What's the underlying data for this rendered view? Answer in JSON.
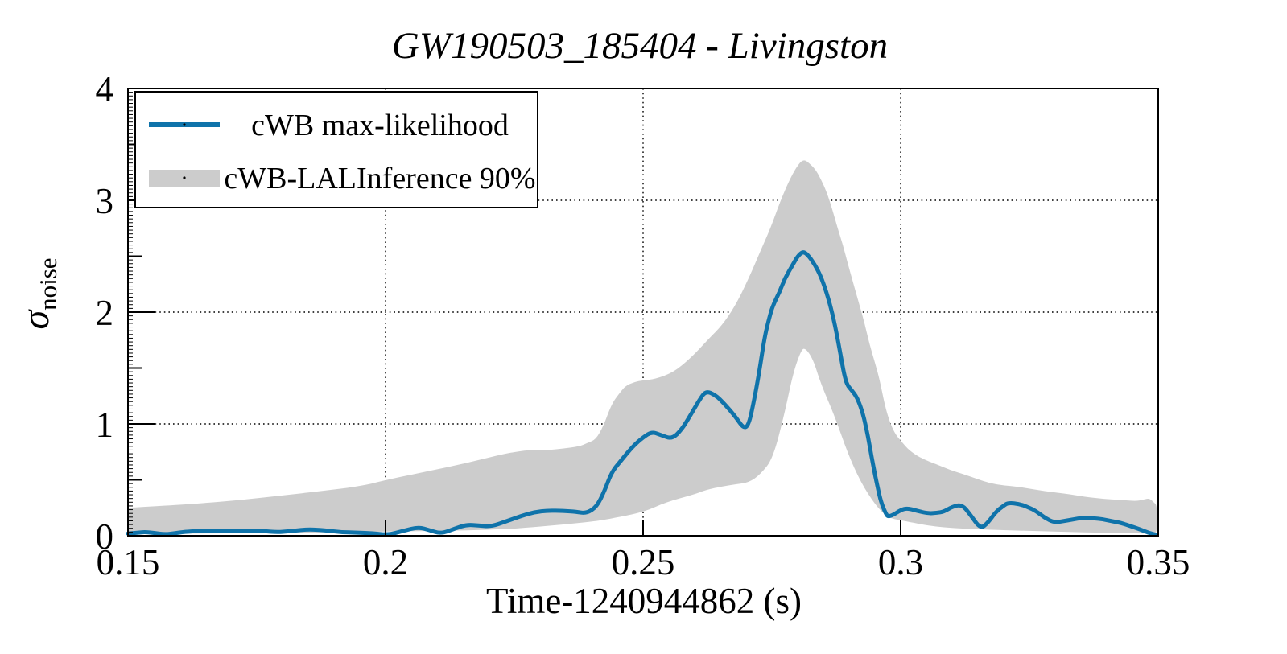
{
  "title": "GW190503_185404 - Livingston",
  "y_axis_label": {
    "symbol": "σ",
    "subscript": "noise"
  },
  "legend": {
    "entries": [
      {
        "label": "cWB max-likelihood",
        "swatch": "line"
      },
      {
        "label": "cWB-LALInference 90%",
        "swatch": "band"
      }
    ]
  },
  "chart_data": {
    "type": "line",
    "title": "GW190503_185404 - Livingston",
    "xlabel": "Time-1240944862 (s)",
    "ylabel": "sigma_noise",
    "xlim": [
      0.15,
      0.35
    ],
    "ylim": [
      0,
      4
    ],
    "x_ticks": [
      0.15,
      0.2,
      0.25,
      0.3,
      0.35
    ],
    "x_tick_labels": [
      "0.15",
      "0.2",
      "0.25",
      "0.3",
      "0.35"
    ],
    "y_ticks": [
      0,
      1,
      2,
      3,
      4
    ],
    "y_tick_labels": [
      "0",
      "1",
      "2",
      "3",
      "4"
    ],
    "x_gridlines": [
      0.2,
      0.25,
      0.3
    ],
    "y_gridlines": [
      1,
      2,
      3
    ],
    "grid_style": "dotted",
    "legend_position": "top-left",
    "colors": {
      "line": "#0f73aa",
      "band": "#cccccc",
      "frame": "#000000"
    },
    "series": [
      {
        "name": "cWB max-likelihood",
        "type": "line",
        "points": [
          [
            0.15,
            0.02
          ],
          [
            0.152,
            0.028
          ],
          [
            0.1533,
            0.034
          ],
          [
            0.155,
            0.025
          ],
          [
            0.1572,
            0.012
          ],
          [
            0.159,
            0.022
          ],
          [
            0.161,
            0.035
          ],
          [
            0.164,
            0.044
          ],
          [
            0.168,
            0.045
          ],
          [
            0.172,
            0.046
          ],
          [
            0.1763,
            0.042
          ],
          [
            0.179,
            0.032
          ],
          [
            0.1812,
            0.04
          ],
          [
            0.1836,
            0.052
          ],
          [
            0.1855,
            0.057
          ],
          [
            0.188,
            0.05
          ],
          [
            0.1913,
            0.032
          ],
          [
            0.1945,
            0.028
          ],
          [
            0.1975,
            0.022
          ],
          [
            0.2006,
            0.008
          ],
          [
            0.2035,
            0.045
          ],
          [
            0.2064,
            0.078
          ],
          [
            0.2085,
            0.05
          ],
          [
            0.2108,
            0.018
          ],
          [
            0.2135,
            0.065
          ],
          [
            0.2158,
            0.1
          ],
          [
            0.218,
            0.092
          ],
          [
            0.2205,
            0.082
          ],
          [
            0.2235,
            0.13
          ],
          [
            0.2265,
            0.18
          ],
          [
            0.229,
            0.212
          ],
          [
            0.2315,
            0.226
          ],
          [
            0.2345,
            0.222
          ],
          [
            0.237,
            0.215
          ],
          [
            0.239,
            0.2
          ],
          [
            0.241,
            0.26
          ],
          [
            0.2425,
            0.4
          ],
          [
            0.2439,
            0.57
          ],
          [
            0.2455,
            0.66
          ],
          [
            0.248,
            0.8
          ],
          [
            0.25,
            0.88
          ],
          [
            0.2517,
            0.93
          ],
          [
            0.2535,
            0.9
          ],
          [
            0.2556,
            0.865
          ],
          [
            0.2575,
            0.95
          ],
          [
            0.2591,
            1.07
          ],
          [
            0.261,
            1.22
          ],
          [
            0.2622,
            1.295
          ],
          [
            0.264,
            1.26
          ],
          [
            0.2658,
            1.18
          ],
          [
            0.268,
            1.06
          ],
          [
            0.2695,
            0.96
          ],
          [
            0.2705,
            0.99
          ],
          [
            0.2715,
            1.2
          ],
          [
            0.2725,
            1.45
          ],
          [
            0.2736,
            1.78
          ],
          [
            0.2745,
            1.95
          ],
          [
            0.2752,
            2.06
          ],
          [
            0.2765,
            2.18
          ],
          [
            0.2775,
            2.3
          ],
          [
            0.279,
            2.42
          ],
          [
            0.28,
            2.5
          ],
          [
            0.2811,
            2.545
          ],
          [
            0.2822,
            2.5
          ],
          [
            0.2834,
            2.42
          ],
          [
            0.2845,
            2.32
          ],
          [
            0.2856,
            2.18
          ],
          [
            0.2868,
            1.98
          ],
          [
            0.2877,
            1.78
          ],
          [
            0.2884,
            1.6
          ],
          [
            0.289,
            1.45
          ],
          [
            0.2896,
            1.35
          ],
          [
            0.2905,
            1.3
          ],
          [
            0.2915,
            1.24
          ],
          [
            0.2925,
            1.12
          ],
          [
            0.2933,
            0.97
          ],
          [
            0.294,
            0.8
          ],
          [
            0.2947,
            0.62
          ],
          [
            0.2955,
            0.44
          ],
          [
            0.2962,
            0.3
          ],
          [
            0.297,
            0.21
          ],
          [
            0.2975,
            0.17
          ],
          [
            0.2985,
            0.185
          ],
          [
            0.3,
            0.23
          ],
          [
            0.3013,
            0.247
          ],
          [
            0.303,
            0.225
          ],
          [
            0.3053,
            0.2
          ],
          [
            0.307,
            0.205
          ],
          [
            0.3084,
            0.215
          ],
          [
            0.31,
            0.26
          ],
          [
            0.3119,
            0.28
          ],
          [
            0.3135,
            0.19
          ],
          [
            0.3155,
            0.06
          ],
          [
            0.317,
            0.12
          ],
          [
            0.3184,
            0.21
          ],
          [
            0.32,
            0.27
          ],
          [
            0.3209,
            0.295
          ],
          [
            0.3231,
            0.285
          ],
          [
            0.325,
            0.25
          ],
          [
            0.3263,
            0.22
          ],
          [
            0.328,
            0.16
          ],
          [
            0.3298,
            0.118
          ],
          [
            0.3315,
            0.13
          ],
          [
            0.3334,
            0.145
          ],
          [
            0.3356,
            0.163
          ],
          [
            0.3375,
            0.155
          ],
          [
            0.3392,
            0.148
          ],
          [
            0.341,
            0.13
          ],
          [
            0.3428,
            0.115
          ],
          [
            0.3447,
            0.085
          ],
          [
            0.3466,
            0.055
          ],
          [
            0.3482,
            0.025
          ],
          [
            0.3497,
            0.008
          ]
        ]
      },
      {
        "name": "cWB-LALInference 90%",
        "type": "band",
        "upper": [
          [
            0.15,
            0.25
          ],
          [
            0.1564,
            0.266
          ],
          [
            0.1642,
            0.29
          ],
          [
            0.172,
            0.32
          ],
          [
            0.1798,
            0.36
          ],
          [
            0.1877,
            0.4
          ],
          [
            0.1955,
            0.445
          ],
          [
            0.2002,
            0.5
          ],
          [
            0.208,
            0.575
          ],
          [
            0.2158,
            0.65
          ],
          [
            0.2236,
            0.74
          ],
          [
            0.2283,
            0.77
          ],
          [
            0.2314,
            0.765
          ],
          [
            0.2345,
            0.78
          ],
          [
            0.2377,
            0.8
          ],
          [
            0.2392,
            0.83
          ],
          [
            0.2408,
            0.86
          ],
          [
            0.2423,
            0.98
          ],
          [
            0.2439,
            1.18
          ],
          [
            0.2455,
            1.28
          ],
          [
            0.2466,
            1.34
          ],
          [
            0.2483,
            1.375
          ],
          [
            0.25,
            1.39
          ],
          [
            0.2522,
            1.4
          ],
          [
            0.2559,
            1.46
          ],
          [
            0.2595,
            1.6
          ],
          [
            0.2627,
            1.76
          ],
          [
            0.2653,
            1.88
          ],
          [
            0.2678,
            2.05
          ],
          [
            0.2705,
            2.3
          ],
          [
            0.2731,
            2.58
          ],
          [
            0.2748,
            2.76
          ],
          [
            0.2767,
            3.0
          ],
          [
            0.2783,
            3.17
          ],
          [
            0.2798,
            3.3
          ],
          [
            0.2811,
            3.37
          ],
          [
            0.2823,
            3.33
          ],
          [
            0.2834,
            3.28
          ],
          [
            0.2845,
            3.19
          ],
          [
            0.2856,
            3.08
          ],
          [
            0.2866,
            2.94
          ],
          [
            0.2877,
            2.76
          ],
          [
            0.2888,
            2.6
          ],
          [
            0.2897,
            2.44
          ],
          [
            0.2908,
            2.26
          ],
          [
            0.2919,
            2.08
          ],
          [
            0.293,
            1.9
          ],
          [
            0.2939,
            1.72
          ],
          [
            0.295,
            1.55
          ],
          [
            0.2959,
            1.4
          ],
          [
            0.297,
            1.15
          ],
          [
            0.2981,
            0.99
          ],
          [
            0.2991,
            0.9
          ],
          [
            0.3002,
            0.84
          ],
          [
            0.3017,
            0.76
          ],
          [
            0.3041,
            0.69
          ],
          [
            0.3069,
            0.64
          ],
          [
            0.3095,
            0.59
          ],
          [
            0.3122,
            0.55
          ],
          [
            0.3147,
            0.51
          ],
          [
            0.3173,
            0.47
          ],
          [
            0.32,
            0.45
          ],
          [
            0.3225,
            0.44
          ],
          [
            0.3252,
            0.42
          ],
          [
            0.3278,
            0.4
          ],
          [
            0.3303,
            0.385
          ],
          [
            0.333,
            0.37
          ],
          [
            0.3356,
            0.35
          ],
          [
            0.3381,
            0.335
          ],
          [
            0.3408,
            0.325
          ],
          [
            0.3434,
            0.318
          ],
          [
            0.3459,
            0.31
          ],
          [
            0.3473,
            0.325
          ],
          [
            0.3483,
            0.335
          ],
          [
            0.3491,
            0.3
          ],
          [
            0.3498,
            0.27
          ]
        ],
        "lower": [
          [
            0.15,
            0.015
          ],
          [
            0.1642,
            0.02
          ],
          [
            0.1798,
            0.027
          ],
          [
            0.1955,
            0.032
          ],
          [
            0.2002,
            0.038
          ],
          [
            0.208,
            0.042
          ],
          [
            0.2158,
            0.048
          ],
          [
            0.2236,
            0.06
          ],
          [
            0.2283,
            0.075
          ],
          [
            0.2345,
            0.1
          ],
          [
            0.2408,
            0.13
          ],
          [
            0.2439,
            0.155
          ],
          [
            0.25,
            0.21
          ],
          [
            0.2544,
            0.3
          ],
          [
            0.26,
            0.37
          ],
          [
            0.2622,
            0.41
          ],
          [
            0.2653,
            0.44
          ],
          [
            0.2678,
            0.46
          ],
          [
            0.2705,
            0.475
          ],
          [
            0.2728,
            0.55
          ],
          [
            0.2752,
            0.69
          ],
          [
            0.2775,
            1.1
          ],
          [
            0.2791,
            1.45
          ],
          [
            0.2806,
            1.65
          ],
          [
            0.2814,
            1.685
          ],
          [
            0.283,
            1.58
          ],
          [
            0.2845,
            1.36
          ],
          [
            0.2872,
            1.07
          ],
          [
            0.2897,
            0.74
          ],
          [
            0.2923,
            0.475
          ],
          [
            0.295,
            0.28
          ],
          [
            0.2975,
            0.16
          ],
          [
            0.3002,
            0.137
          ],
          [
            0.3064,
            0.08
          ],
          [
            0.3147,
            0.057
          ],
          [
            0.3252,
            0.043
          ],
          [
            0.3356,
            0.03
          ],
          [
            0.3459,
            0.022
          ],
          [
            0.3486,
            0.017
          ],
          [
            0.3498,
            0.014
          ]
        ]
      }
    ]
  }
}
